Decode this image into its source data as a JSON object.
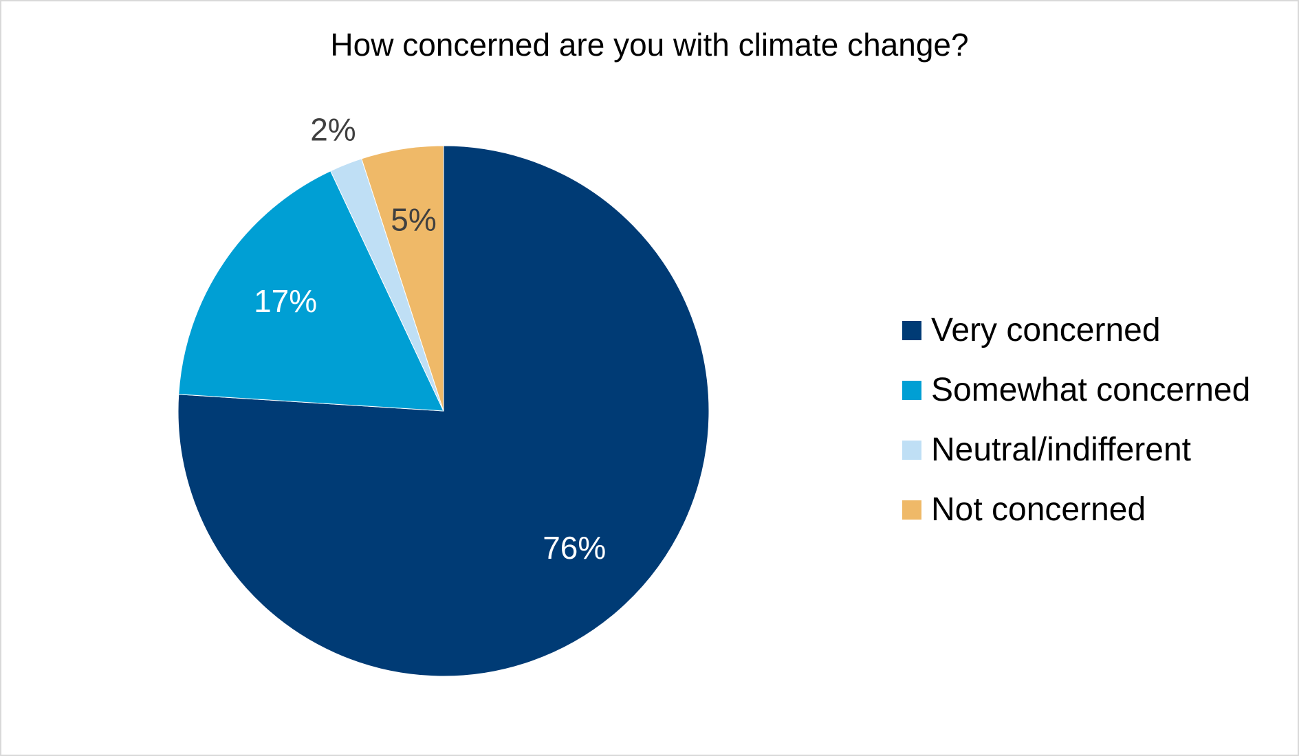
{
  "chart_data": {
    "type": "pie",
    "title": "How concerned are you with climate change?",
    "categories": [
      "Very concerned",
      "Somewhat concerned",
      "Neutral/indifferent",
      "Not concerned"
    ],
    "values": [
      76,
      17,
      2,
      5
    ],
    "labels": [
      "76%",
      "17%",
      "2%",
      "5%"
    ],
    "colors": [
      "#003b75",
      "#009fd4",
      "#bfdff5",
      "#efb968"
    ],
    "label_colors": [
      "#ffffff",
      "#ffffff",
      "#404040",
      "#404040"
    ],
    "legend_position": "right"
  }
}
